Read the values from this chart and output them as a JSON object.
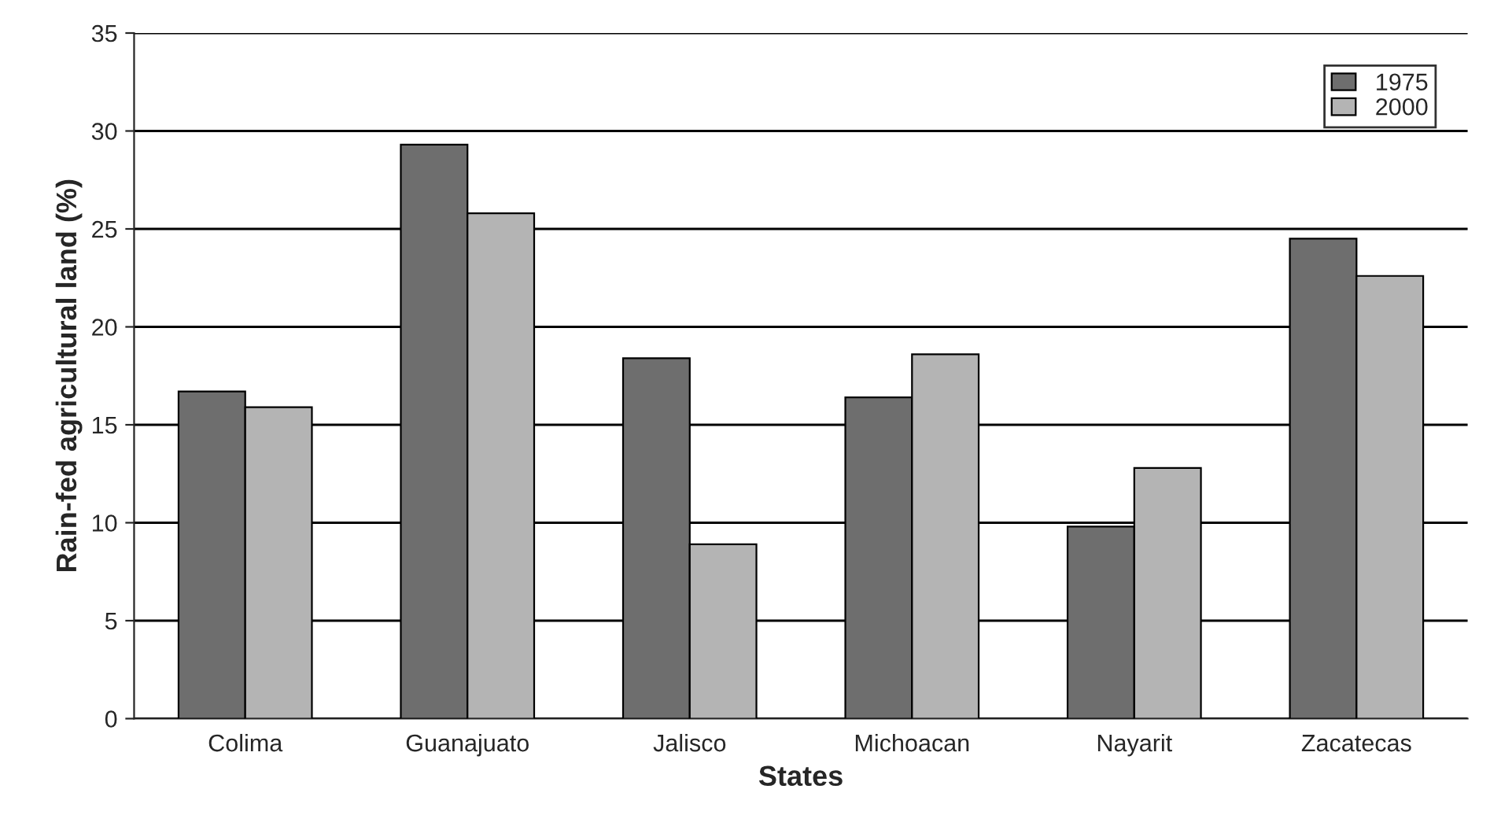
{
  "chart_data": {
    "type": "bar",
    "xlabel": "States",
    "ylabel": "Rain-fed agricultural land (%)",
    "categories": [
      "Colima",
      "Guanajuato",
      "Jalisco",
      "Michoacan",
      "Nayarit",
      "Zacatecas"
    ],
    "series": [
      {
        "name": "1975",
        "color": "#6e6e6e",
        "values": [
          16.7,
          29.3,
          18.4,
          16.4,
          9.8,
          24.5
        ]
      },
      {
        "name": "2000",
        "color": "#b4b4b4",
        "values": [
          15.9,
          25.8,
          8.9,
          18.6,
          12.8,
          22.6
        ]
      }
    ],
    "ylim": [
      0,
      35
    ],
    "yticks": [
      0,
      5,
      10,
      15,
      20,
      25,
      30,
      35
    ],
    "grid": "y",
    "legend": "top right"
  }
}
